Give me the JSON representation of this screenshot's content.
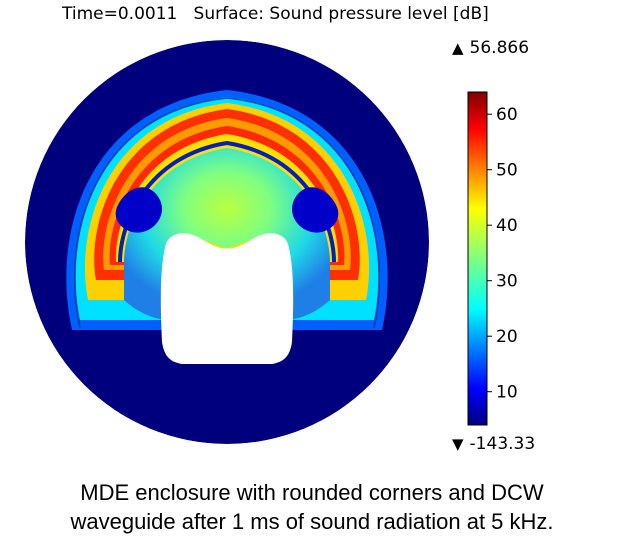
{
  "title": "Time=0.0011   Surface: Sound pressure level [dB]",
  "colorbar": {
    "max_label": "56.866",
    "min_label": "-143.33",
    "ticks": [
      "60",
      "50",
      "40",
      "30",
      "20",
      "10"
    ],
    "range": [
      4,
      64
    ]
  },
  "caption": {
    "line1": "MDE enclosure with rounded corners and DCW",
    "line2": "waveguide after 1 ms of sound radiation at 5 kHz."
  }
}
